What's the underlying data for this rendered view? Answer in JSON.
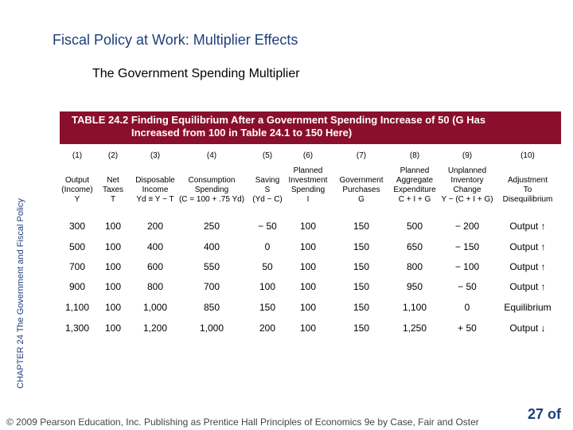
{
  "title": "Fiscal Policy at Work: Multiplier Effects",
  "subtitle": "The Government Spending Multiplier",
  "side_label": "CHAPTER 24  The Government and Fiscal Policy",
  "table_title_line1": "TABLE 24.2  Finding Equilibrium After a Government Spending Increase of 50 (G Has",
  "table_title_line2": "Increased from 100 in Table 24.1 to 150 Here)",
  "column_numbers": [
    "(1)",
    "(2)",
    "(3)",
    "(4)",
    "(5)",
    "(6)",
    "(7)",
    "(8)",
    "(9)",
    "(10)"
  ],
  "headers": [
    [
      "",
      "Output",
      "(Income)",
      "Y"
    ],
    [
      "",
      "Net",
      "Taxes",
      "T"
    ],
    [
      "",
      "Disposable",
      "Income",
      "Yd ≡ Y − T"
    ],
    [
      "",
      "Consumption",
      "Spending",
      "(C = 100 + .75 Yd)"
    ],
    [
      "",
      "Saving",
      "S",
      "(Yd − C)"
    ],
    [
      "Planned",
      "Investment",
      "Spending",
      "I"
    ],
    [
      "",
      "Government",
      "Purchases",
      "G"
    ],
    [
      "Planned",
      "Aggregate",
      "Expenditure",
      "C + I + G"
    ],
    [
      "Unplanned",
      "Inventory",
      "Change",
      "Y − (C + I + G)"
    ],
    [
      "",
      "Adjustment",
      "To",
      "Disequilibrium"
    ]
  ],
  "rows": [
    [
      "300",
      "100",
      "200",
      "250",
      "− 50",
      "100",
      "150",
      "500",
      "− 200",
      "Output ↑"
    ],
    [
      "500",
      "100",
      "400",
      "400",
      "0",
      "100",
      "150",
      "650",
      "− 150",
      "Output ↑"
    ],
    [
      "700",
      "100",
      "600",
      "550",
      "50",
      "100",
      "150",
      "800",
      "− 100",
      "Output ↑"
    ],
    [
      "900",
      "100",
      "800",
      "700",
      "100",
      "100",
      "150",
      "950",
      "− 50",
      "Output ↑"
    ],
    [
      "1,100",
      "100",
      "1,000",
      "850",
      "150",
      "100",
      "150",
      "1,100",
      "0",
      "Equilibrium"
    ],
    [
      "1,300",
      "100",
      "1,200",
      "1,000",
      "200",
      "100",
      "150",
      "1,250",
      "+ 50",
      "Output ↓"
    ]
  ],
  "footer": "© 2009 Pearson Education, Inc. Publishing as Prentice Hall   Principles of Economics 9e by Case, Fair and Oster",
  "page_number": "27 of"
}
